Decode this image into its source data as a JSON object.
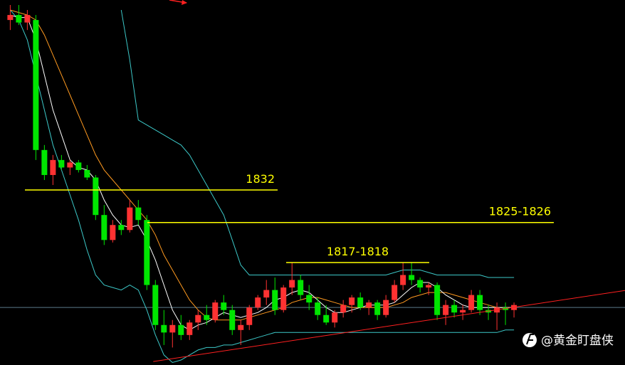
{
  "chart_data": {
    "type": "candlestick",
    "xlim": [
      -1.2,
      72
    ],
    "ylim": [
      1797,
      1870
    ],
    "up_color": "#ff3232",
    "down_color": "#00e600",
    "open": [
      1866,
      1867,
      1865.5,
      1866,
      1840,
      1835,
      1838,
      1836.5,
      1837.5,
      1836,
      1834.5,
      1827,
      1822,
      1825,
      1824,
      1828.5,
      1826,
      1813,
      1805,
      1803.5,
      1805,
      1803,
      1805.5,
      1807,
      1806,
      1809.5,
      1808,
      1804,
      1805,
      1808.5,
      1810.5,
      1812,
      1808,
      1812.5,
      1814,
      1811,
      1809.5,
      1807,
      1805.5,
      1807.5,
      1809,
      1810.5,
      1808.5,
      1809.5,
      1807,
      1810,
      1813,
      1815,
      1814,
      1812.5,
      1813,
      1807,
      1809,
      1807.5,
      1808,
      1811,
      1808,
      1807.5,
      1808.5,
      1808
    ],
    "high": [
      1869,
      1869,
      1868,
      1867,
      1841,
      1839,
      1839,
      1838,
      1838,
      1837,
      1835,
      1829,
      1826,
      1826,
      1830,
      1830,
      1827,
      1814,
      1808,
      1806,
      1807,
      1806,
      1808,
      1809,
      1810,
      1811,
      1809,
      1806,
      1809,
      1811,
      1814,
      1814.5,
      1813,
      1817.5,
      1815,
      1813,
      1810.5,
      1809,
      1808,
      1810,
      1811,
      1811.5,
      1810,
      1810,
      1811,
      1814,
      1817.5,
      1817.5,
      1814.5,
      1813.5,
      1813.5,
      1810,
      1810,
      1809,
      1812,
      1812,
      1809,
      1809.5,
      1809.5,
      1809.5
    ],
    "low": [
      1864,
      1865,
      1864,
      1838,
      1834,
      1833,
      1836,
      1835,
      1835.5,
      1834,
      1826,
      1821,
      1821.5,
      1823,
      1823.5,
      1825,
      1812,
      1804,
      1801,
      1800.5,
      1802,
      1802,
      1804,
      1805,
      1805.5,
      1807,
      1803,
      1801,
      1804,
      1808,
      1809,
      1807,
      1807.5,
      1811,
      1810,
      1808,
      1806,
      1805,
      1804.5,
      1806.5,
      1807.5,
      1808,
      1807,
      1806,
      1806.5,
      1809.5,
      1812,
      1813,
      1811.5,
      1811,
      1806,
      1805,
      1806.5,
      1806,
      1807.5,
      1807,
      1806,
      1804,
      1805,
      1806.5
    ],
    "close": [
      1867,
      1865.5,
      1867,
      1840,
      1835,
      1838,
      1836.5,
      1837.5,
      1836,
      1834.5,
      1827,
      1822,
      1825,
      1824,
      1828.5,
      1826,
      1813,
      1805,
      1803.5,
      1805,
      1803,
      1805.5,
      1807,
      1806,
      1809.5,
      1808,
      1804,
      1805,
      1808.5,
      1810.5,
      1812,
      1808,
      1812.5,
      1814,
      1811,
      1809.5,
      1807,
      1805.5,
      1807.5,
      1809,
      1810.5,
      1808.5,
      1809.5,
      1807,
      1810,
      1813,
      1815,
      1814,
      1812.5,
      1813,
      1807,
      1809,
      1807.5,
      1808,
      1811,
      1808,
      1807.5,
      1808.5,
      1808,
      1809
    ],
    "overlays": [
      {
        "color": "#3cc8c8",
        "values": [
          null,
          null,
          null,
          null,
          null,
          null,
          null,
          null,
          null,
          null,
          null,
          null,
          null,
          1868,
          1858,
          1846,
          1845,
          1844,
          1843,
          1842,
          1841,
          1839,
          1836,
          1833,
          1830,
          1827,
          1822,
          1817,
          1815,
          1815,
          1815,
          1815,
          1815,
          1815,
          1815,
          1815,
          1815,
          1815,
          1815,
          1815,
          1815,
          1815,
          1815,
          1815,
          1815,
          1815.5,
          1816,
          1816,
          1816,
          1815.5,
          1815,
          1815,
          1815,
          1815,
          1815,
          1815,
          1814.5,
          1814.5,
          1814.5,
          1814.5
        ]
      },
      {
        "color": "#3cc8c8",
        "values": [
          1868,
          1866,
          1862,
          1855,
          1848,
          1841,
          1836,
          1831,
          1826,
          1820,
          1815,
          1813,
          1812.5,
          1812,
          1813,
          1812,
          1808,
          1803,
          1799,
          1797.5,
          1798,
          1799,
          1800,
          1800.5,
          1800.5,
          1801,
          1801,
          1801.5,
          1802,
          1802.5,
          1803,
          1803.5,
          1803.5,
          1803.5,
          1803.5,
          1803.5,
          1803.5,
          1803.5,
          1803.5,
          1803.5,
          1803.5,
          1803.5,
          1803.5,
          1803.5,
          1803.5,
          1803.5,
          1803.5,
          1803.5,
          1803.5,
          1803.5,
          1803.5,
          1803.5,
          1803.5,
          1803.5,
          1803.5,
          1803.5,
          1803.5,
          1803.5,
          1804,
          1804
        ]
      },
      {
        "color": "#ff9a20",
        "values": [
          1868,
          1867.5,
          1867,
          1866,
          1863,
          1859,
          1855,
          1851,
          1847,
          1843,
          1839,
          1836,
          1834,
          1832,
          1830,
          1828,
          1826,
          1823,
          1819,
          1816,
          1813,
          1810,
          1808,
          1806.5,
          1806,
          1806,
          1806,
          1806,
          1806.5,
          1807,
          1807.5,
          1808,
          1808.5,
          1809.5,
          1810,
          1810.5,
          1810.5,
          1810,
          1809.5,
          1809,
          1808.5,
          1808.5,
          1808.5,
          1808.5,
          1808.5,
          1809,
          1809.5,
          1810.5,
          1811,
          1811.5,
          1811.5,
          1811.5,
          1811,
          1810.5,
          1810,
          1809.5,
          1809,
          1808.5,
          1808.5,
          1808.5
        ]
      },
      {
        "color": "#ffffff",
        "values": [
          1867,
          1866.5,
          1866.5,
          1862,
          1855,
          1848,
          1843,
          1838,
          1836.5,
          1836,
          1834,
          1830,
          1827,
          1825,
          1824.5,
          1825,
          1822,
          1818,
          1813,
          1808,
          1805,
          1804,
          1805,
          1805.5,
          1806.5,
          1807.5,
          1807,
          1806.5,
          1807,
          1807.5,
          1808.5,
          1810,
          1810.5,
          1811.5,
          1812,
          1811.5,
          1810,
          1808.5,
          1807.5,
          1807.5,
          1808,
          1808.5,
          1809,
          1809,
          1809,
          1809.5,
          1811,
          1812.5,
          1813.5,
          1813.5,
          1812.5,
          1811,
          1810,
          1809,
          1808.5,
          1808.5,
          1808.5,
          1808.5,
          1808.5,
          1808.5
        ]
      }
    ],
    "levels": [
      {
        "value": 1832,
        "label": "1832"
      },
      {
        "value": 1825.5,
        "label": "1825-1826"
      },
      {
        "value": 1817.5,
        "label": "1817-1818"
      }
    ],
    "level_color": "#ffff00",
    "trendline": {
      "x": [
        16.75,
        72
      ],
      "values": [
        1797.7,
        1811.9
      ],
      "color": "#ff2020"
    },
    "hline": {
      "value": 1808.5,
      "color": "#5a7a8a"
    },
    "watermark": "@黄金盯盘侠"
  }
}
